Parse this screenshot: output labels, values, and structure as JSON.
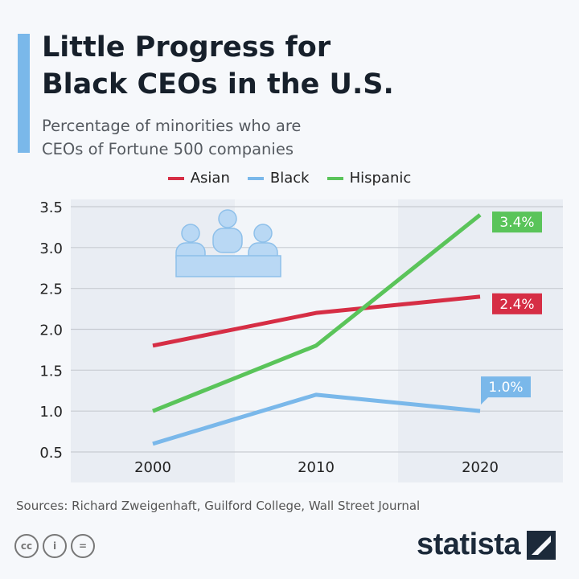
{
  "title_line1": "Little Progress for",
  "title_line2": "Black CEOs in the U.S.",
  "subtitle_line1": "Percentage of minorities who are",
  "subtitle_line2": "CEOs of Fortune 500 companies",
  "source": "Sources: Richard Zweigenhaft, Guilford College, Wall Street Journal",
  "brand": "statista",
  "license_icons": [
    "cc",
    "by",
    "nd"
  ],
  "license_labels": {
    "cc": "cc",
    "by": "i",
    "nd": "="
  },
  "icon": "business-meeting-icon",
  "chart_data": {
    "type": "line",
    "categories": [
      "2000",
      "2010",
      "2020"
    ],
    "ylim": [
      0.5,
      3.5
    ],
    "yticks": [
      "0.5",
      "1.0",
      "1.5",
      "2.0",
      "2.5",
      "3.0",
      "3.5"
    ],
    "grid": true,
    "legend": "top",
    "series": [
      {
        "name": "Asian",
        "color": "#d62e45",
        "values": [
          1.8,
          2.2,
          2.4
        ],
        "end_label": "2.4%"
      },
      {
        "name": "Black",
        "color": "#7ab8ea",
        "values": [
          0.6,
          1.2,
          1.0
        ],
        "end_label": "1.0%"
      },
      {
        "name": "Hispanic",
        "color": "#5ac45a",
        "values": [
          1.0,
          1.8,
          3.4
        ],
        "end_label": "3.4%"
      }
    ]
  }
}
